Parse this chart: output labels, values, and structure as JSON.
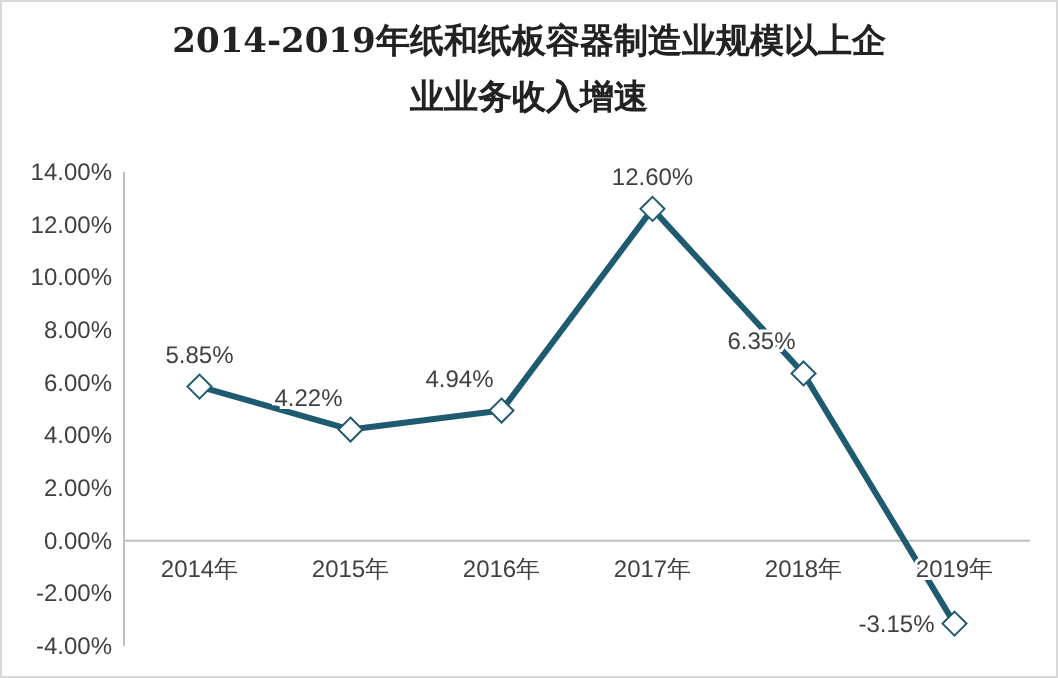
{
  "chart_data": {
    "type": "line",
    "title": "2014-2019年纸和纸板容器制造业规模以上企业业务收入增速",
    "categories": [
      "2014年",
      "2015年",
      "2016年",
      "2017年",
      "2018年",
      "2019年"
    ],
    "series": [
      {
        "color": "#1f5b70",
        "values": [
          5.85,
          4.22,
          4.94,
          12.6,
          6.35,
          -3.15
        ],
        "value_labels": [
          "5.85%",
          "4.22%",
          "4.94%",
          "12.60%",
          "6.35%",
          "-3.15%"
        ]
      }
    ],
    "ylim": [
      -4,
      14
    ],
    "yticks": [
      {
        "value": -4,
        "label": "-4.00%"
      },
      {
        "value": -2,
        "label": "-2.00%"
      },
      {
        "value": 0,
        "label": "0.00%"
      },
      {
        "value": 2,
        "label": "2.00%"
      },
      {
        "value": 4,
        "label": "4.00%"
      },
      {
        "value": 6,
        "label": "6.00%"
      },
      {
        "value": 8,
        "label": "8.00%"
      },
      {
        "value": 10,
        "label": "10.00%"
      },
      {
        "value": 12,
        "label": "12.00%"
      },
      {
        "value": 14,
        "label": "14.00%"
      }
    ],
    "marker": "diamond",
    "line_style": "solid",
    "grid": false
  }
}
